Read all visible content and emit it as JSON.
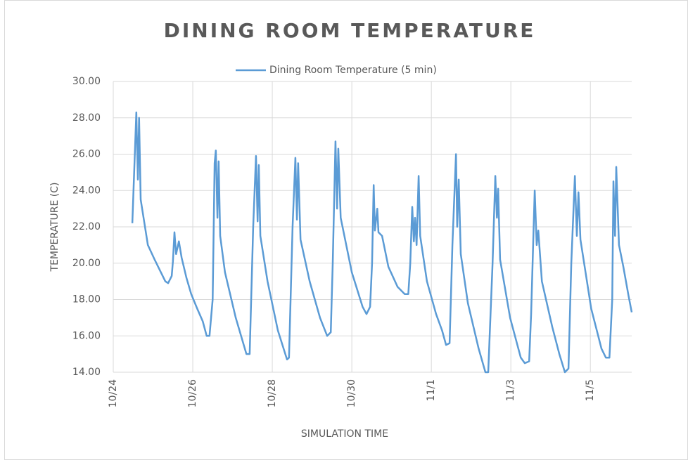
{
  "chart_data": {
    "type": "line",
    "title": "DINING ROOM TEMPERATURE",
    "x_label": "SIMULATION TIME",
    "y_label": "TEMPERATURE (C)",
    "x": [
      0.48,
      0.58,
      0.62,
      0.65,
      0.69,
      0.87,
      1.04,
      1.31,
      1.38,
      1.47,
      1.5,
      1.54,
      1.58,
      1.65,
      1.72,
      1.84,
      1.96,
      2.11,
      2.25,
      2.35,
      2.42,
      2.5,
      2.55,
      2.58,
      2.62,
      2.65,
      2.69,
      2.81,
      3.08,
      3.35,
      3.43,
      3.52,
      3.59,
      3.63,
      3.66,
      3.7,
      3.88,
      4.14,
      4.37,
      4.42,
      4.51,
      4.58,
      4.62,
      4.65,
      4.71,
      4.94,
      5.2,
      5.38,
      5.47,
      5.52,
      5.59,
      5.63,
      5.66,
      5.72,
      6.0,
      6.27,
      6.37,
      6.46,
      6.51,
      6.55,
      6.58,
      6.64,
      6.67,
      6.76,
      6.92,
      7.15,
      7.33,
      7.42,
      7.47,
      7.52,
      7.56,
      7.59,
      7.63,
      7.68,
      7.72,
      7.89,
      8.12,
      8.27,
      8.37,
      8.46,
      8.53,
      8.62,
      8.65,
      8.69,
      8.74,
      8.92,
      9.19,
      9.36,
      9.43,
      9.54,
      9.61,
      9.65,
      9.68,
      9.73,
      9.98,
      10.25,
      10.35,
      10.46,
      10.51,
      10.6,
      10.65,
      10.69,
      10.78,
      11.04,
      11.22,
      11.36,
      11.45,
      11.52,
      11.61,
      11.66,
      11.7,
      11.75,
      12.02,
      12.28,
      12.39,
      12.48,
      12.55,
      12.58,
      12.62,
      12.65,
      12.72,
      12.83,
      12.96,
      13.04
    ],
    "series": [
      {
        "name": "Dining Room Temperature (5 min)",
        "color": "#5b9bd5",
        "values": [
          22.2,
          28.3,
          24.6,
          28.0,
          23.5,
          21.0,
          20.2,
          19.0,
          18.9,
          19.3,
          20.1,
          21.7,
          20.5,
          21.2,
          20.3,
          19.2,
          18.3,
          17.5,
          16.8,
          16.0,
          16.0,
          18.0,
          25.5,
          26.2,
          22.5,
          25.6,
          21.5,
          19.5,
          17.0,
          15.0,
          15.0,
          22.0,
          25.9,
          22.3,
          25.4,
          21.5,
          19.0,
          16.3,
          14.7,
          14.8,
          22.0,
          25.8,
          22.4,
          25.5,
          21.3,
          19.0,
          17.0,
          16.0,
          16.2,
          20.0,
          26.7,
          23.0,
          26.3,
          22.5,
          19.5,
          17.6,
          17.2,
          17.6,
          20.0,
          24.3,
          21.8,
          23.0,
          21.7,
          21.5,
          19.8,
          18.7,
          18.3,
          18.3,
          20.0,
          23.1,
          21.2,
          22.5,
          21.0,
          24.8,
          21.5,
          19.0,
          17.2,
          16.3,
          15.5,
          15.6,
          21.0,
          26.0,
          22.0,
          24.6,
          20.5,
          17.8,
          15.3,
          14.0,
          14.0,
          20.0,
          24.8,
          22.5,
          24.1,
          20.2,
          17.0,
          14.8,
          14.5,
          14.6,
          17.2,
          24.0,
          21.0,
          21.8,
          19.0,
          16.5,
          15.0,
          14.0,
          14.2,
          20.0,
          24.8,
          21.5,
          23.9,
          21.3,
          17.5,
          15.3,
          14.8,
          14.8,
          18.0,
          24.5,
          21.5,
          25.3,
          21.0,
          19.8,
          18.2,
          17.3
        ]
      }
    ],
    "xlim": [
      0,
      13.04
    ],
    "xticks": [
      {
        "value": 0,
        "label": "10/24"
      },
      {
        "value": 2,
        "label": "10/26"
      },
      {
        "value": 4,
        "label": "10/28"
      },
      {
        "value": 6,
        "label": "10/30"
      },
      {
        "value": 8,
        "label": "11/1"
      },
      {
        "value": 10,
        "label": "11/3"
      },
      {
        "value": 12,
        "label": "11/5"
      }
    ],
    "ylim": [
      14,
      30
    ],
    "yticks": [
      {
        "value": 14,
        "label": "14.00"
      },
      {
        "value": 16,
        "label": "16.00"
      },
      {
        "value": 18,
        "label": "18.00"
      },
      {
        "value": 20,
        "label": "20.00"
      },
      {
        "value": 22,
        "label": "22.00"
      },
      {
        "value": 24,
        "label": "24.00"
      },
      {
        "value": 26,
        "label": "26.00"
      },
      {
        "value": 28,
        "label": "28.00"
      },
      {
        "value": 30,
        "label": "30.00"
      }
    ],
    "grid": true,
    "legend": "top"
  }
}
